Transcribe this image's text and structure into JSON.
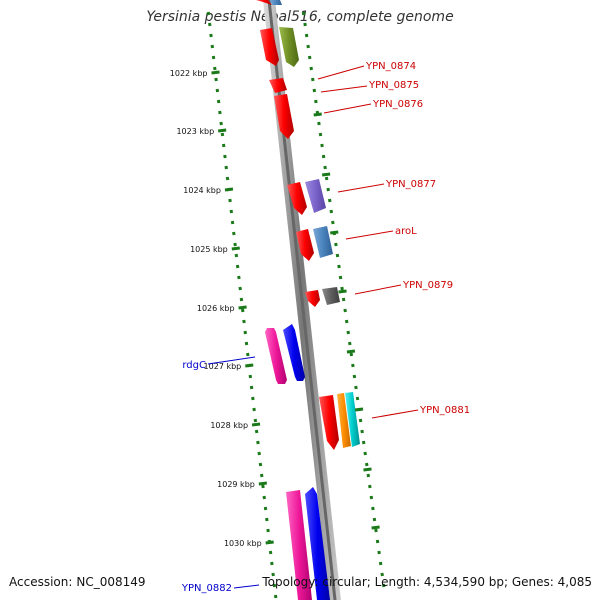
{
  "title": "Yersinia pestis Nepal516, complete genome",
  "footer": {
    "accession_label": "Accession:",
    "accession_value": "NC_008149",
    "summary": "Topology: circular; Length: 4,534,590 bp; Genes: 4,085"
  },
  "colors": {
    "backbone": "#888888",
    "ticks": "#1a7a1a",
    "label_forward": "#cc0000",
    "label_reverse": "#0000cc"
  },
  "scale_labels": [
    "1022 kbp",
    "1023 kbp",
    "1024 kbp",
    "1025 kbp",
    "1026 kbp",
    "1027 kbp",
    "1028 kbp",
    "1029 kbp",
    "1030 kbp"
  ],
  "gene_labels": [
    {
      "text": "YPN_0874",
      "strand": "forward"
    },
    {
      "text": "YPN_0875",
      "strand": "forward"
    },
    {
      "text": "YPN_0876",
      "strand": "forward"
    },
    {
      "text": "YPN_0877",
      "strand": "forward"
    },
    {
      "text": "aroL",
      "strand": "forward"
    },
    {
      "text": "YPN_0879",
      "strand": "forward"
    },
    {
      "text": "YPN_0881",
      "strand": "forward"
    },
    {
      "text": "rdgC",
      "strand": "reverse"
    },
    {
      "text": "YPN_0882",
      "strand": "reverse"
    }
  ]
}
